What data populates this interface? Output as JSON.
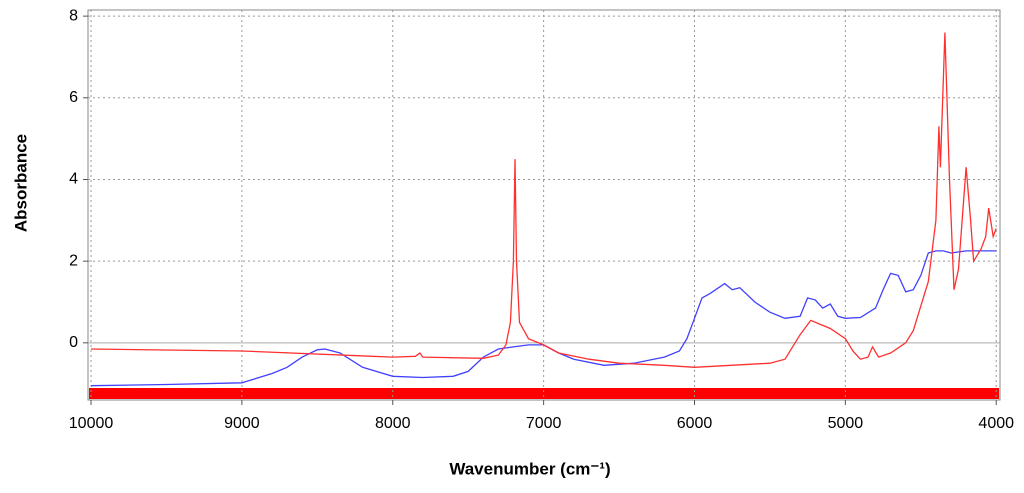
{
  "chart_data": {
    "type": "line",
    "x_label": "Wavenumber (cm⁻¹)",
    "y_label": "Absorbance",
    "xlim": [
      10020,
      3975
    ],
    "ylim": [
      -1.4,
      8.15
    ],
    "xticks": [
      10000,
      9000,
      8000,
      7000,
      6000,
      5000,
      4000
    ],
    "yticks": [
      0,
      2,
      4,
      6,
      8
    ],
    "grid": true,
    "series": [
      {
        "color": "#4040ff",
        "x": [
          10000,
          9500,
          9000,
          8800,
          8700,
          8600,
          8500,
          8450,
          8350,
          8200,
          8000,
          7800,
          7600,
          7500,
          7400,
          7300,
          7200,
          7100,
          7000,
          6900,
          6800,
          6600,
          6400,
          6200,
          6100,
          6050,
          6000,
          5950,
          5900,
          5800,
          5750,
          5700,
          5600,
          5500,
          5400,
          5300,
          5250,
          5200,
          5150,
          5100,
          5050,
          5000,
          4900,
          4800,
          4750,
          4700,
          4650,
          4600,
          4550,
          4500,
          4450,
          4400,
          4350,
          4300,
          4200,
          4000
        ],
        "values": [
          -1.05,
          -1.02,
          -0.98,
          -0.75,
          -0.6,
          -0.35,
          -0.17,
          -0.15,
          -0.25,
          -0.6,
          -0.82,
          -0.85,
          -0.82,
          -0.7,
          -0.35,
          -0.15,
          -0.1,
          -0.05,
          -0.05,
          -0.25,
          -0.4,
          -0.55,
          -0.5,
          -0.35,
          -0.2,
          0.1,
          0.6,
          1.1,
          1.2,
          1.45,
          1.3,
          1.35,
          1.0,
          0.75,
          0.6,
          0.65,
          1.1,
          1.05,
          0.85,
          0.95,
          0.65,
          0.6,
          0.62,
          0.85,
          1.3,
          1.7,
          1.65,
          1.25,
          1.3,
          1.65,
          2.2,
          2.25,
          2.25,
          2.2,
          2.25,
          2.25
        ]
      },
      {
        "color": "#ff3030",
        "x": [
          10000,
          9000,
          8000,
          7850,
          7820,
          7800,
          7400,
          7300,
          7250,
          7220,
          7200,
          7190,
          7180,
          7160,
          7100,
          7000,
          6900,
          6700,
          6500,
          6200,
          6000,
          5500,
          5400,
          5300,
          5230,
          5100,
          5000,
          4950,
          4900,
          4850,
          4820,
          4780,
          4700,
          4600,
          4550,
          4500,
          4450,
          4400,
          4380,
          4370,
          4340,
          4310,
          4280,
          4250,
          4200,
          4170,
          4150,
          4100,
          4070,
          4050,
          4020,
          4000
        ],
        "values": [
          -0.15,
          -0.2,
          -0.35,
          -0.33,
          -0.25,
          -0.35,
          -0.38,
          -0.3,
          -0.05,
          0.5,
          2.0,
          4.5,
          2.0,
          0.5,
          0.1,
          -0.05,
          -0.25,
          -0.4,
          -0.5,
          -0.55,
          -0.6,
          -0.5,
          -0.4,
          0.2,
          0.55,
          0.35,
          0.1,
          -0.2,
          -0.4,
          -0.35,
          -0.1,
          -0.35,
          -0.25,
          0.0,
          0.3,
          0.9,
          1.5,
          3.0,
          5.3,
          4.3,
          7.6,
          4.0,
          1.3,
          1.8,
          4.3,
          3.0,
          2.0,
          2.3,
          2.6,
          3.3,
          2.6,
          2.8
        ]
      }
    ]
  }
}
